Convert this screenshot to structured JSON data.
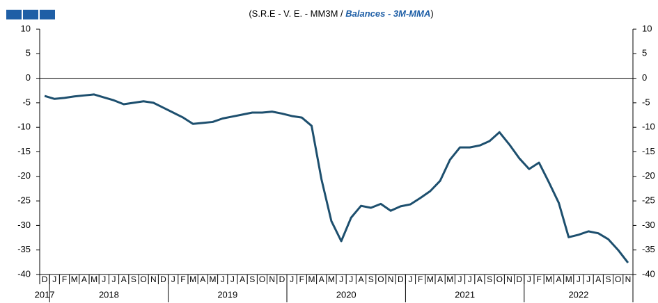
{
  "chart_data": {
    "type": "line",
    "title": "(S.R.E - V. E. - MM3M / ",
    "subtitle": "Balances - 3M-MMA",
    "title_end": ")",
    "categories": [
      "D",
      "J",
      "F",
      "M",
      "A",
      "M",
      "J",
      "J",
      "A",
      "S",
      "O",
      "N",
      "D",
      "J",
      "F",
      "M",
      "A",
      "M",
      "J",
      "J",
      "A",
      "S",
      "O",
      "N",
      "D",
      "J",
      "F",
      "M",
      "A",
      "M",
      "J",
      "J",
      "A",
      "S",
      "O",
      "N",
      "D",
      "J",
      "F",
      "M",
      "A",
      "M",
      "J",
      "J",
      "A",
      "S",
      "O",
      "N",
      "D",
      "J",
      "F",
      "M",
      "A",
      "M",
      "J",
      "J",
      "A",
      "S",
      "O",
      "N"
    ],
    "x_groups": [
      {
        "label": "2017",
        "count": 1
      },
      {
        "label": "2018",
        "count": 12
      },
      {
        "label": "2019",
        "count": 12
      },
      {
        "label": "2020",
        "count": 12
      },
      {
        "label": "2021",
        "count": 12
      },
      {
        "label": "2022",
        "count": 11
      }
    ],
    "series": [
      {
        "name": "Balances - 3M-MMA",
        "color": "#1d4f6e",
        "values": [
          -3.6,
          -4.2,
          -4.0,
          -3.7,
          -3.5,
          -3.3,
          -3.9,
          -4.5,
          -5.3,
          -5.0,
          -4.7,
          -5.0,
          -6.0,
          -7.0,
          -8.0,
          -9.3,
          -9.1,
          -8.9,
          -8.2,
          -7.8,
          -7.4,
          -7.0,
          -7.0,
          -6.8,
          -7.2,
          -7.7,
          -8.0,
          -9.7,
          -20.6,
          -29.1,
          -33.2,
          -28.4,
          -26.0,
          -26.4,
          -25.6,
          -27.0,
          -26.1,
          -25.7,
          -24.4,
          -23.0,
          -20.9,
          -16.6,
          -14.1,
          -14.1,
          -13.7,
          -12.8,
          -11.0,
          -13.5,
          -16.3,
          -18.5,
          -17.2,
          -21.2,
          -25.4,
          -32.4,
          -31.9,
          -31.2,
          -31.6,
          -32.8,
          -35.0,
          -37.6
        ]
      }
    ],
    "ylim": [
      -40,
      10
    ],
    "yticks": [
      -40,
      -35,
      -30,
      -25,
      -20,
      -15,
      -10,
      -5,
      0,
      5,
      10
    ],
    "zero_line": true
  }
}
